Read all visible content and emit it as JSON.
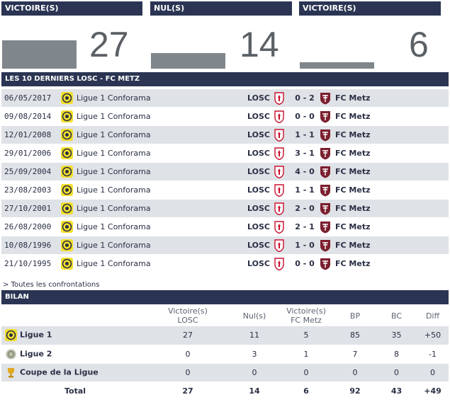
{
  "stats": {
    "home_wins": {
      "label": "VICTOIRE(S)",
      "value": "27",
      "fraction": 0.57
    },
    "draws": {
      "label": "NUL(S)",
      "value": "14",
      "fraction": 0.3
    },
    "away_wins": {
      "label": "VICTOIRE(S)",
      "value": "6",
      "fraction": 0.13
    }
  },
  "colors": {
    "header_bg": "#2b3553",
    "row_alt": "#dfe2e6",
    "bar": "#7f868c",
    "ligue1_yellow": "#f2df2a",
    "losc_red": "#c8102e",
    "metz_red": "#7b1f2e"
  },
  "last10": {
    "title": "LES 10 DERNIERS LOSC - FC METZ",
    "matches": [
      {
        "date": "06/05/2017",
        "competition": "Ligue 1 Conforama",
        "home": "LOSC",
        "score": "0 - 2",
        "away": "FC Metz"
      },
      {
        "date": "09/08/2014",
        "competition": "Ligue 1 Conforama",
        "home": "LOSC",
        "score": "0 - 0",
        "away": "FC Metz"
      },
      {
        "date": "12/01/2008",
        "competition": "Ligue 1 Conforama",
        "home": "LOSC",
        "score": "1 - 1",
        "away": "FC Metz"
      },
      {
        "date": "29/01/2006",
        "competition": "Ligue 1 Conforama",
        "home": "LOSC",
        "score": "3 - 1",
        "away": "FC Metz"
      },
      {
        "date": "25/09/2004",
        "competition": "Ligue 1 Conforama",
        "home": "LOSC",
        "score": "4 - 0",
        "away": "FC Metz"
      },
      {
        "date": "23/08/2003",
        "competition": "Ligue 1 Conforama",
        "home": "LOSC",
        "score": "1 - 1",
        "away": "FC Metz"
      },
      {
        "date": "27/10/2001",
        "competition": "Ligue 1 Conforama",
        "home": "LOSC",
        "score": "2 - 0",
        "away": "FC Metz"
      },
      {
        "date": "26/08/2000",
        "competition": "Ligue 1 Conforama",
        "home": "LOSC",
        "score": "2 - 1",
        "away": "FC Metz"
      },
      {
        "date": "10/08/1996",
        "competition": "Ligue 1 Conforama",
        "home": "LOSC",
        "score": "1 - 0",
        "away": "FC Metz"
      },
      {
        "date": "21/10/1995",
        "competition": "Ligue 1 Conforama",
        "home": "LOSC",
        "score": "0 - 0",
        "away": "FC Metz"
      }
    ],
    "all_link": "> Toutes les confrontations"
  },
  "bilan": {
    "title": "BILAN",
    "headers": {
      "wins_losc_1": "Victoire(s)",
      "wins_losc_2": "LOSC",
      "draws": "Nul(s)",
      "wins_metz_1": "Victoire(s)",
      "wins_metz_2": "FC Metz",
      "bp": "BP",
      "bc": "BC",
      "diff": "Diff"
    },
    "rows": [
      {
        "label": "Ligue 1",
        "icon": "ligue1-icon",
        "w": "27",
        "d": "11",
        "l": "5",
        "bp": "85",
        "bc": "35",
        "diff": "+50"
      },
      {
        "label": "Ligue 2",
        "icon": "ligue2-icon",
        "w": "0",
        "d": "3",
        "l": "1",
        "bp": "7",
        "bc": "8",
        "diff": "-1"
      },
      {
        "label": "Coupe de la Ligue",
        "icon": "trophy-icon",
        "w": "0",
        "d": "0",
        "l": "0",
        "bp": "0",
        "bc": "0",
        "diff": "0"
      }
    ],
    "total": {
      "label": "Total",
      "w": "27",
      "d": "14",
      "l": "6",
      "bp": "92",
      "bc": "43",
      "diff": "+49"
    }
  }
}
